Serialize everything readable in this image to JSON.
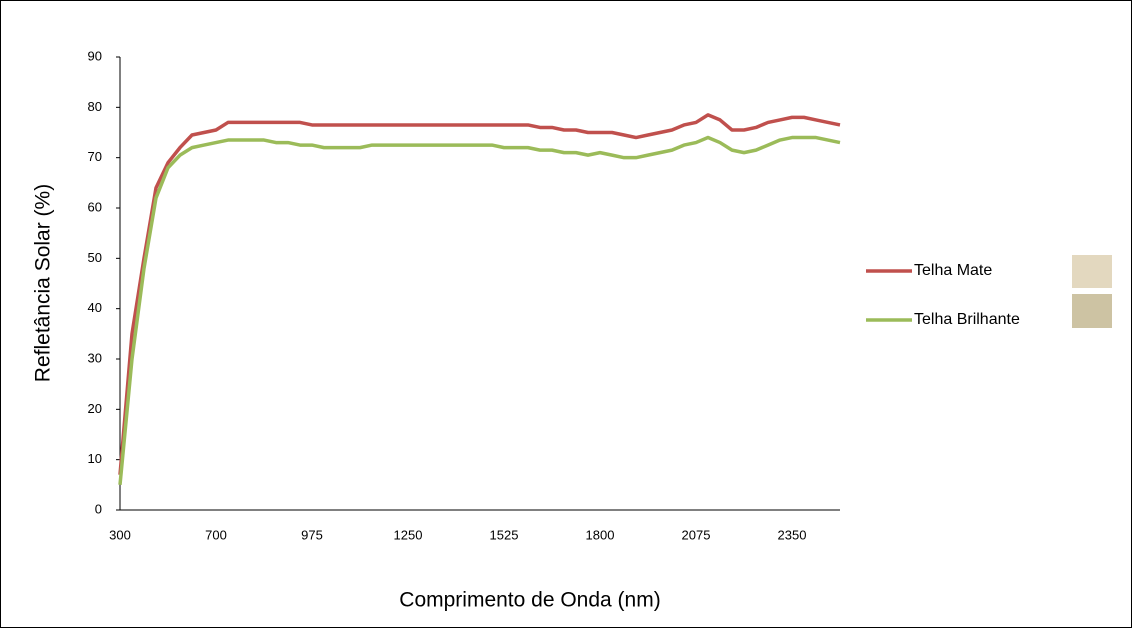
{
  "chart_data": {
    "type": "line",
    "x_label": "Comprimento de Onda (nm)",
    "y_label": "Refletância Solar (%)",
    "categories": [
      "300",
      null,
      null,
      null,
      null,
      null,
      null,
      null,
      "700",
      null,
      null,
      null,
      null,
      null,
      null,
      null,
      "975",
      null,
      null,
      null,
      null,
      null,
      null,
      null,
      "1250",
      null,
      null,
      null,
      null,
      null,
      null,
      null,
      "1525",
      null,
      null,
      null,
      null,
      null,
      null,
      null,
      "1800",
      null,
      null,
      null,
      null,
      null,
      null,
      null,
      "2075",
      null,
      null,
      null,
      null,
      null,
      null,
      null,
      "2350",
      null,
      null,
      null,
      null
    ],
    "series": [
      {
        "name": "Telha Mate",
        "color": "#c0504d",
        "values": [
          7,
          35,
          50,
          64,
          69,
          72,
          74.5,
          75,
          75.5,
          77,
          77,
          77,
          77,
          77,
          77,
          77,
          76.5,
          76.5,
          76.5,
          76.5,
          76.5,
          76.5,
          76.5,
          76.5,
          76.5,
          76.5,
          76.5,
          76.5,
          76.5,
          76.5,
          76.5,
          76.5,
          76.5,
          76.5,
          76.5,
          76,
          76,
          75.5,
          75.5,
          75,
          75,
          75,
          74.5,
          74,
          74.5,
          75,
          75.5,
          76.5,
          77,
          78.5,
          77.5,
          75.5,
          75.5,
          76,
          77,
          77.5,
          78,
          78,
          77.5,
          77,
          76.5
        ]
      },
      {
        "name": "Telha Brilhante",
        "color": "#9bbb59",
        "values": [
          5,
          30,
          48,
          62,
          68,
          70.5,
          72,
          72.5,
          73,
          73.5,
          73.5,
          73.5,
          73.5,
          73,
          73,
          72.5,
          72.5,
          72,
          72,
          72,
          72,
          72.5,
          72.5,
          72.5,
          72.5,
          72.5,
          72.5,
          72.5,
          72.5,
          72.5,
          72.5,
          72.5,
          72,
          72,
          72,
          71.5,
          71.5,
          71,
          71,
          70.5,
          71,
          70.5,
          70,
          70,
          70.5,
          71,
          71.5,
          72.5,
          73,
          74,
          73,
          71.5,
          71,
          71.5,
          72.5,
          73.5,
          74,
          74,
          74,
          73.5,
          73
        ]
      }
    ],
    "ylim": [
      0,
      90
    ],
    "yticks": [
      0,
      10,
      20,
      30,
      40,
      50,
      60,
      70,
      80,
      90
    ],
    "grid": false
  }
}
